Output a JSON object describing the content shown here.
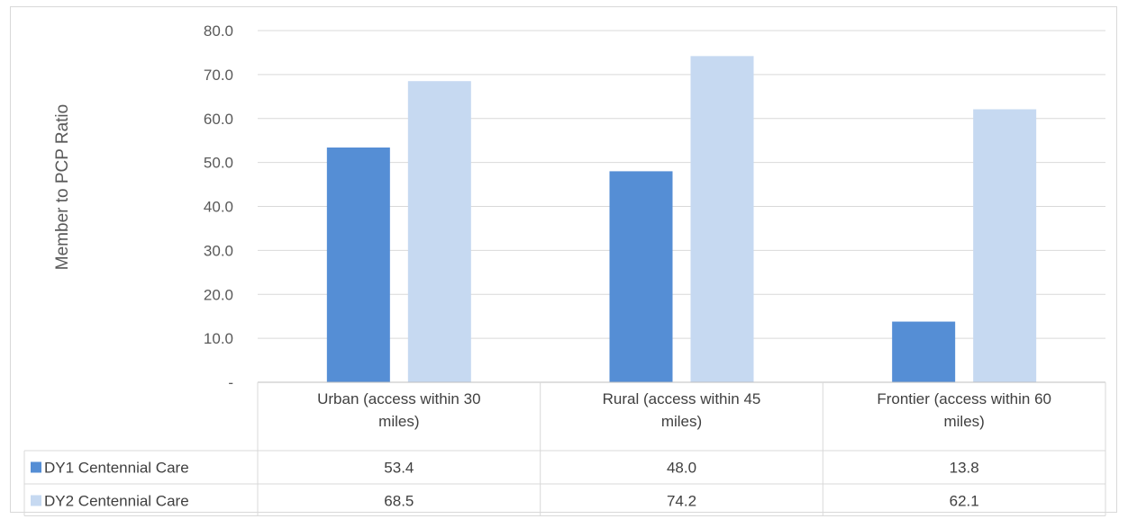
{
  "chart_data": {
    "type": "bar",
    "title": "",
    "xlabel": "",
    "ylabel": "Member to PCP Ratio",
    "ylim": [
      0,
      80
    ],
    "yticks": [
      "-",
      "10.0",
      "20.0",
      "30.0",
      "40.0",
      "50.0",
      "60.0",
      "70.0",
      "80.0"
    ],
    "grid": true,
    "legend": "data-table",
    "categories": [
      [
        "Urban (access within 30",
        "miles)"
      ],
      [
        "Rural (access within 45",
        "miles)"
      ],
      [
        "Frontier (access within 60",
        "miles)"
      ]
    ],
    "series": [
      {
        "name": "DY1 Centennial Care",
        "color": "#558ed5",
        "values": [
          53.4,
          48.0,
          13.8
        ],
        "labels": [
          "53.4",
          "48.0",
          "13.8"
        ]
      },
      {
        "name": "DY2 Centennial Care",
        "color": "#c6d9f1",
        "values": [
          68.5,
          74.2,
          62.1
        ],
        "labels": [
          "68.5",
          "74.2",
          "62.1"
        ]
      }
    ]
  }
}
